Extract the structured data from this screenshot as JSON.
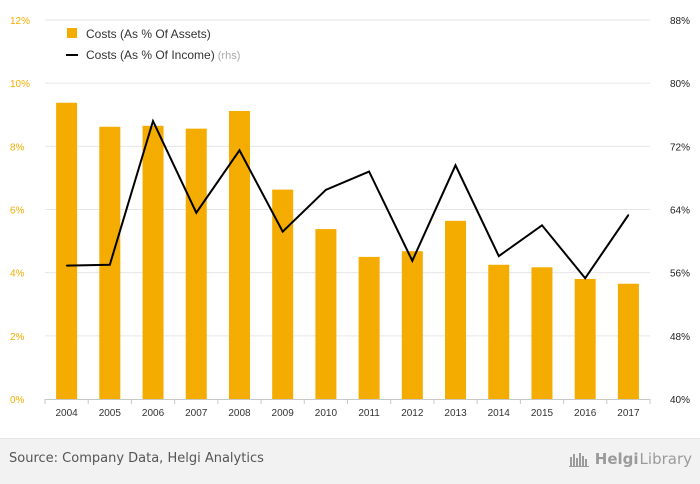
{
  "chart_data": {
    "type": "bar+line",
    "categories": [
      "2004",
      "2005",
      "2006",
      "2007",
      "2008",
      "2009",
      "2010",
      "2011",
      "2012",
      "2013",
      "2014",
      "2015",
      "2016",
      "2017"
    ],
    "series": [
      {
        "name": "Costs (As % Of Assets)",
        "type": "bar",
        "axis": "left",
        "color": "#f5ac00",
        "values": [
          9.38,
          8.62,
          8.65,
          8.56,
          9.12,
          6.63,
          5.38,
          4.5,
          4.68,
          5.64,
          4.25,
          4.17,
          3.8,
          3.65
        ]
      },
      {
        "name": "Costs (As % Of Income)",
        "type": "line",
        "axis": "right",
        "color": "#000000",
        "values": [
          56.9,
          57.0,
          75.2,
          63.6,
          71.5,
          61.2,
          66.5,
          68.8,
          57.5,
          69.6,
          58.1,
          62.0,
          55.3,
          63.3
        ]
      }
    ],
    "y_left": {
      "min": 0,
      "max": 12,
      "ticks": [
        0,
        2,
        4,
        6,
        8,
        10,
        12
      ],
      "unit": "%",
      "label_color": "#f5ac00"
    },
    "y_right": {
      "min": 40,
      "max": 88,
      "ticks": [
        40,
        48,
        56,
        64,
        72,
        80,
        88
      ],
      "unit": "%",
      "label_color": "#222222"
    },
    "legend": {
      "position": "top-left",
      "items": [
        {
          "label": "Costs (As % Of Assets)",
          "suffix": ""
        },
        {
          "label": "Costs (As % Of Income)",
          "suffix": "(rhs)"
        }
      ]
    },
    "grid": "horizontal"
  },
  "footer": {
    "source": "Source: Company Data, Helgi Analytics",
    "brand_name": "Helgi",
    "brand_library": "Library"
  }
}
